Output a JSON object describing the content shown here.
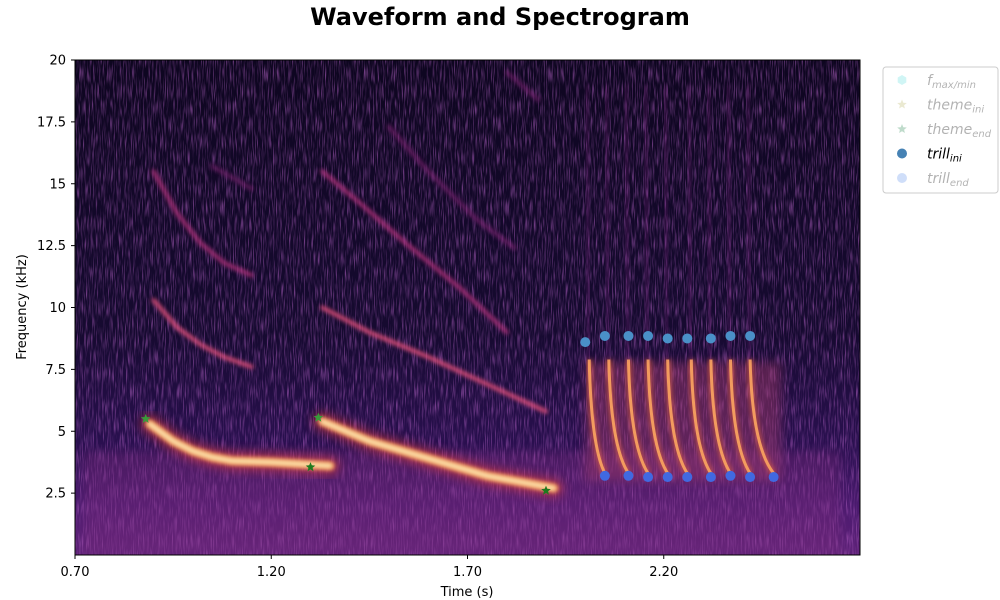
{
  "chart_data": {
    "type": "heatmap",
    "title": "Waveform and Spectrogram",
    "xlabel": "Time (s)",
    "ylabel": "Frequency (kHz)",
    "xlim": [
      0.7,
      2.7
    ],
    "ylim": [
      0,
      20
    ],
    "x_ticks": [
      "0.70",
      "1.20",
      "1.70",
      "2.20"
    ],
    "x_tick_values": [
      0.7,
      1.2,
      1.7,
      2.2
    ],
    "y_ticks": [
      "2.5",
      "5",
      "7.5",
      "10",
      "12.5",
      "15",
      "17.5",
      "20"
    ],
    "y_tick_values": [
      2.5,
      5,
      7.5,
      10,
      12.5,
      15,
      17.5,
      20
    ],
    "colormap": "magma",
    "legend_position": "outside upper right",
    "legend": [
      {
        "base": "f",
        "sub": "max/min",
        "marker": "hexagon",
        "color": "#66e0e0",
        "faded": true
      },
      {
        "base": "theme",
        "sub": "ini",
        "marker": "star",
        "color": "#bdb76b",
        "faded": true
      },
      {
        "base": "theme",
        "sub": "end",
        "marker": "star",
        "color": "#2e8b57",
        "faded": true
      },
      {
        "base": "trill",
        "sub": "ini",
        "marker": "circle",
        "color": "#4682b4",
        "faded": false
      },
      {
        "base": "trill",
        "sub": "end",
        "marker": "circle",
        "color": "#6495ed",
        "faded": true
      }
    ],
    "series": [
      {
        "name": "theme_ini",
        "marker": "star",
        "color": "#3a9a3a",
        "points": [
          [
            0.88,
            5.5
          ],
          [
            1.32,
            5.55
          ]
        ]
      },
      {
        "name": "theme_end",
        "marker": "star",
        "color": "#1f7a1f",
        "points": [
          [
            1.3,
            3.55
          ],
          [
            1.9,
            2.6
          ]
        ]
      },
      {
        "name": "trill_ini",
        "marker": "circle",
        "color": "#4a90c8",
        "points": [
          [
            2.0,
            8.6
          ],
          [
            2.05,
            8.85
          ],
          [
            2.11,
            8.85
          ],
          [
            2.16,
            8.85
          ],
          [
            2.21,
            8.75
          ],
          [
            2.26,
            8.75
          ],
          [
            2.32,
            8.75
          ],
          [
            2.37,
            8.85
          ],
          [
            2.42,
            8.85
          ]
        ]
      },
      {
        "name": "trill_end",
        "marker": "circle",
        "color": "#4169e1",
        "points": [
          [
            2.05,
            3.2
          ],
          [
            2.11,
            3.2
          ],
          [
            2.16,
            3.15
          ],
          [
            2.21,
            3.15
          ],
          [
            2.26,
            3.15
          ],
          [
            2.32,
            3.15
          ],
          [
            2.37,
            3.2
          ],
          [
            2.42,
            3.15
          ],
          [
            2.48,
            3.15
          ]
        ]
      }
    ],
    "spectrogram_traces": [
      {
        "name": "note1-fundamental",
        "points": [
          [
            0.89,
            5.3
          ],
          [
            0.95,
            4.6
          ],
          [
            1.0,
            4.2
          ],
          [
            1.05,
            3.95
          ],
          [
            1.1,
            3.8
          ],
          [
            1.2,
            3.75
          ],
          [
            1.35,
            3.6
          ]
        ],
        "intensity": 1.0
      },
      {
        "name": "note1-harmonic2",
        "points": [
          [
            0.9,
            10.3
          ],
          [
            0.96,
            9.2
          ],
          [
            1.02,
            8.5
          ],
          [
            1.08,
            8.0
          ],
          [
            1.15,
            7.6
          ]
        ],
        "intensity": 0.55
      },
      {
        "name": "note1-harmonic3",
        "points": [
          [
            0.9,
            15.5
          ],
          [
            0.96,
            13.8
          ],
          [
            1.02,
            12.6
          ],
          [
            1.08,
            11.8
          ],
          [
            1.15,
            11.3
          ]
        ],
        "intensity": 0.5
      },
      {
        "name": "note1-faint",
        "points": [
          [
            1.05,
            15.7
          ],
          [
            1.15,
            14.8
          ]
        ],
        "intensity": 0.3
      },
      {
        "name": "note2-fundamental",
        "points": [
          [
            1.33,
            5.4
          ],
          [
            1.45,
            4.6
          ],
          [
            1.6,
            3.9
          ],
          [
            1.75,
            3.2
          ],
          [
            1.92,
            2.7
          ]
        ],
        "intensity": 1.0
      },
      {
        "name": "note2-harmonic2",
        "points": [
          [
            1.33,
            10.0
          ],
          [
            1.45,
            9.0
          ],
          [
            1.6,
            8.0
          ],
          [
            1.75,
            6.9
          ],
          [
            1.9,
            5.8
          ]
        ],
        "intensity": 0.55
      },
      {
        "name": "note2-harmonic3",
        "points": [
          [
            1.33,
            15.5
          ],
          [
            1.42,
            14.3
          ],
          [
            1.55,
            12.5
          ],
          [
            1.68,
            10.8
          ],
          [
            1.8,
            9.0
          ]
        ],
        "intensity": 0.5
      },
      {
        "name": "note2-harmonic4",
        "points": [
          [
            1.5,
            17.3
          ],
          [
            1.6,
            15.5
          ],
          [
            1.72,
            13.6
          ],
          [
            1.82,
            12.4
          ]
        ],
        "intensity": 0.35
      },
      {
        "name": "note2-faint",
        "points": [
          [
            1.8,
            19.5
          ],
          [
            1.88,
            18.4
          ]
        ],
        "intensity": 0.25
      }
    ],
    "trill_sweeps": [
      {
        "start": [
          2.01,
          7.9
        ],
        "end": [
          2.05,
          3.3
        ]
      },
      {
        "start": [
          2.06,
          7.9
        ],
        "end": [
          2.11,
          3.3
        ]
      },
      {
        "start": [
          2.11,
          7.9
        ],
        "end": [
          2.16,
          3.3
        ]
      },
      {
        "start": [
          2.16,
          7.9
        ],
        "end": [
          2.21,
          3.3
        ]
      },
      {
        "start": [
          2.21,
          7.9
        ],
        "end": [
          2.26,
          3.3
        ]
      },
      {
        "start": [
          2.27,
          7.9
        ],
        "end": [
          2.32,
          3.3
        ]
      },
      {
        "start": [
          2.32,
          7.9
        ],
        "end": [
          2.37,
          3.3
        ]
      },
      {
        "start": [
          2.37,
          7.9
        ],
        "end": [
          2.42,
          3.3
        ]
      },
      {
        "start": [
          2.42,
          7.9
        ],
        "end": [
          2.48,
          3.3
        ]
      }
    ]
  }
}
